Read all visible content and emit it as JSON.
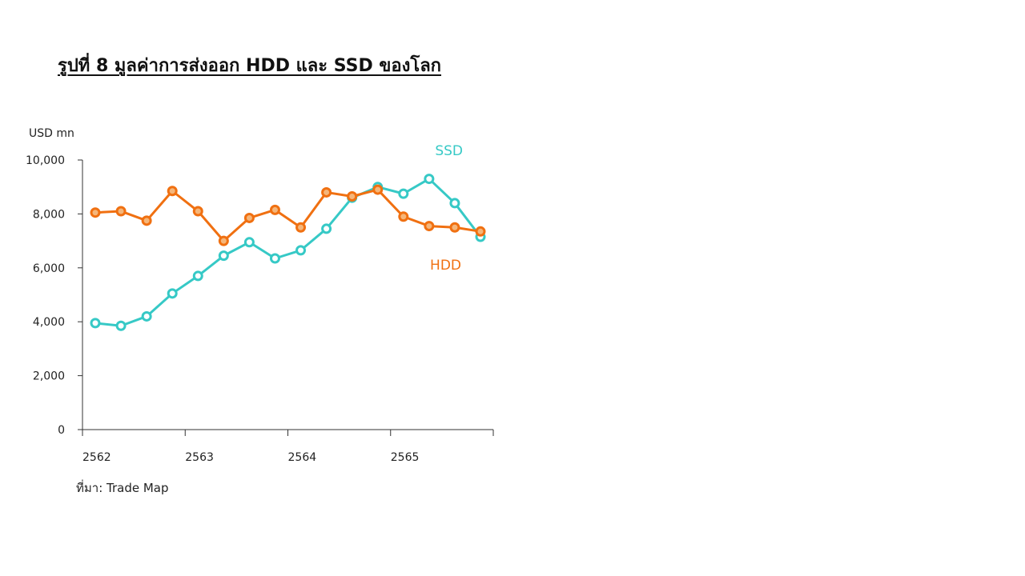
{
  "figure": {
    "title": "รูปที่ 8 มูลค่าการส่งออก HDD และ SSD ของโลก",
    "source": "ที่มา: Trade Map"
  },
  "chart_data": {
    "type": "line",
    "ylabel": "USD mn",
    "xlabel": "",
    "ylim": [
      0,
      10000
    ],
    "yticks": [
      "0",
      "2,000",
      "4,000",
      "6,000",
      "8,000",
      "10,000"
    ],
    "ytick_values": [
      0,
      2000,
      4000,
      6000,
      8000,
      10000
    ],
    "xticks": [
      "2562",
      "2563",
      "2564",
      "2565"
    ],
    "x_per_year": 4,
    "grid": false,
    "series": [
      {
        "name": "SSD",
        "color": "#36c9c6",
        "values": [
          3950,
          3850,
          4200,
          5050,
          5700,
          6450,
          6950,
          6350,
          6650,
          7450,
          8600,
          9000,
          8750,
          9300,
          8400,
          7150
        ]
      },
      {
        "name": "HDD",
        "color": "#f07011",
        "values": [
          8050,
          8100,
          7750,
          8850,
          8100,
          7000,
          7850,
          8150,
          7500,
          8800,
          8650,
          8900,
          7900,
          7550,
          7500,
          7350
        ]
      }
    ]
  }
}
